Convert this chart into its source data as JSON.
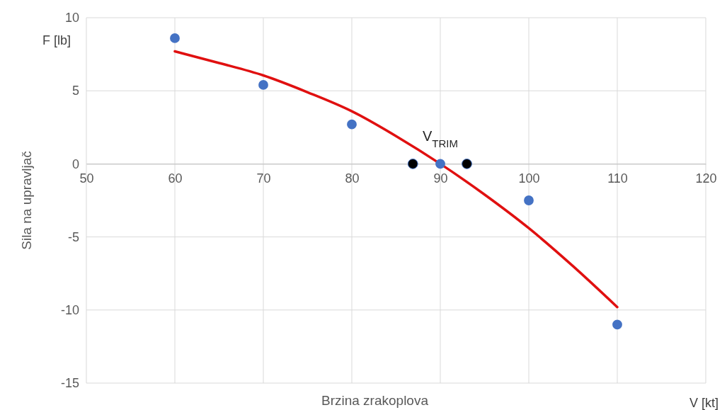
{
  "chart_data": {
    "type": "scatter",
    "xlabel": "Brzina zrakoplova",
    "ylabel": "Sila na upravljač",
    "xlim": [
      50,
      120
    ],
    "xticks": [
      50,
      60,
      70,
      80,
      90,
      100,
      110,
      120
    ],
    "ylim": [
      -15,
      10
    ],
    "yticks": [
      -15,
      -10,
      -5,
      0,
      5,
      10
    ],
    "grid": true,
    "marker": "circle",
    "series": [
      {
        "type": "line",
        "color": "#e01010",
        "line_style": "solid",
        "marker": "none",
        "x": [
          60,
          65,
          70,
          75,
          80,
          85,
          90,
          95,
          100,
          105,
          110
        ],
        "values": [
          7.7,
          6.9,
          6.05,
          4.9,
          3.6,
          1.9,
          0,
          -2.1,
          -4.4,
          -7.0,
          -9.8
        ]
      },
      {
        "color": "#4472c4",
        "x": [
          60,
          70,
          80,
          90,
          100,
          110
        ],
        "values": [
          8.6,
          5.4,
          2.7,
          0,
          -2.5,
          -11
        ]
      },
      {
        "color": "#000000",
        "x": [
          86.9,
          93
        ],
        "values": [
          0,
          0
        ]
      }
    ],
    "annotations": [
      "F [lb]",
      "V [kt]",
      {
        "text": "V$_{TRIM}$",
        "x": 90,
        "y": 0
      }
    ]
  }
}
